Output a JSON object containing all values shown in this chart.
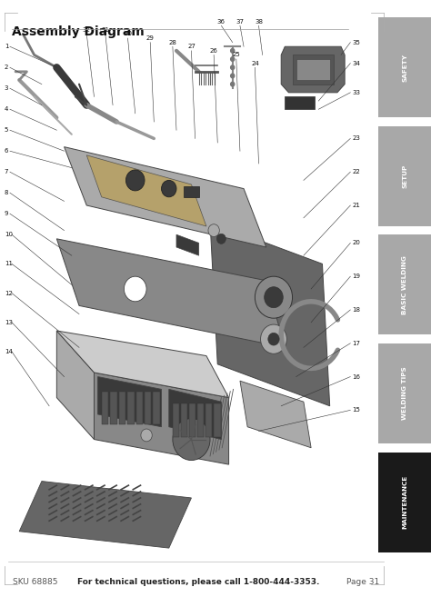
{
  "title": "Assembly Diagram",
  "title_fontsize": 10,
  "title_fontweight": "bold",
  "footer_left": "SKU 68885",
  "footer_center": "For technical questions, please call 1-800-444-3353.",
  "footer_right": "Page 31",
  "footer_fontsize": 6.5,
  "sidebar_tabs": [
    {
      "label": "SAFETY",
      "color": "#a8a8a8",
      "text_color": "#ffffff",
      "bold": true
    },
    {
      "label": "SETUP",
      "color": "#a8a8a8",
      "text_color": "#ffffff",
      "bold": true
    },
    {
      "label": "BASIC WELDING",
      "color": "#a8a8a8",
      "text_color": "#ffffff",
      "bold": true
    },
    {
      "label": "WELDING TIPS",
      "color": "#a8a8a8",
      "text_color": "#ffffff",
      "bold": true
    },
    {
      "label": "MAINTENANCE",
      "color": "#1a1a1a",
      "text_color": "#ffffff",
      "bold": true
    }
  ],
  "bg_color": "#ffffff",
  "page_bg": "#e8e8e8",
  "diagram_area_bg": "#ffffff",
  "gray_dark": "#666666",
  "gray_med": "#888888",
  "gray_light": "#aaaaaa",
  "gray_lighter": "#cccccc",
  "gray_darkest": "#3a3a3a",
  "line_color": "#333333",
  "num_color": "#111111",
  "num_fontsize": 5.0,
  "line_lw": 0.4,
  "left_labels": [
    1,
    2,
    3,
    4,
    5,
    6,
    7,
    8,
    9,
    10,
    11,
    12,
    13,
    14
  ],
  "right_labels": [
    35,
    34,
    33,
    23,
    22,
    21,
    20,
    19,
    18,
    17,
    16,
    15
  ]
}
